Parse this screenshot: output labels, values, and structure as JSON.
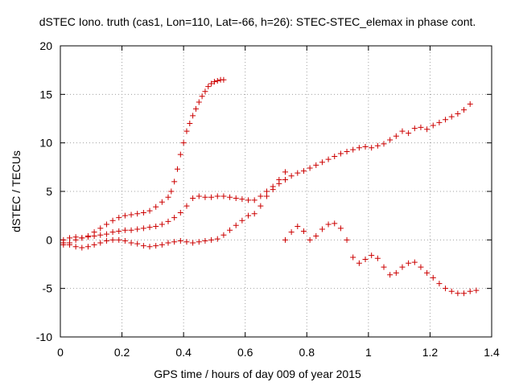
{
  "chart_data": {
    "type": "scatter",
    "title": "dSTEC Iono. truth (cas1, Lon=110, Lat=-66, h=26): STEC-STEC_elemax in phase cont.",
    "xlabel": "GPS time / hours of day 009 of year 2015",
    "ylabel": "dSTEC  / TECUs",
    "xlim": [
      0,
      1.4
    ],
    "ylim": [
      -10,
      20
    ],
    "xticks": [
      0,
      0.2,
      0.4,
      0.6,
      0.8,
      1,
      1.2,
      1.4
    ],
    "yticks": [
      -10,
      -5,
      0,
      5,
      10,
      15,
      20
    ],
    "grid": true,
    "marker": "+",
    "color": "#cc0000",
    "series": [
      {
        "x": [
          0.01,
          0.03,
          0.05,
          0.07,
          0.09,
          0.11,
          0.13,
          0.15,
          0.17,
          0.19,
          0.21,
          0.23,
          0.25,
          0.27,
          0.29,
          0.31,
          0.33,
          0.35,
          0.36,
          0.37,
          0.38,
          0.39,
          0.4,
          0.41,
          0.42,
          0.43,
          0.44,
          0.45,
          0.46,
          0.47,
          0.48,
          0.49,
          0.5,
          0.51,
          0.52,
          0.53
        ],
        "y": [
          -0.5,
          -0.3,
          0.0,
          0.2,
          0.4,
          0.8,
          1.2,
          1.6,
          2.0,
          2.3,
          2.5,
          2.6,
          2.7,
          2.8,
          3.0,
          3.4,
          3.9,
          4.4,
          5.0,
          6.0,
          7.3,
          8.8,
          10.0,
          11.2,
          12.0,
          12.8,
          13.5,
          14.2,
          14.8,
          15.3,
          15.8,
          16.1,
          16.3,
          16.4,
          16.5,
          16.5
        ]
      },
      {
        "x": [
          0.01,
          0.03,
          0.05,
          0.07,
          0.09,
          0.11,
          0.13,
          0.15,
          0.17,
          0.19,
          0.21,
          0.23,
          0.25,
          0.27,
          0.29,
          0.31,
          0.33,
          0.35,
          0.37,
          0.39,
          0.41,
          0.43,
          0.45,
          0.47,
          0.49,
          0.51,
          0.53,
          0.55,
          0.57,
          0.59,
          0.61,
          0.63,
          0.65,
          0.67,
          0.69,
          0.71,
          0.73
        ],
        "y": [
          0.0,
          0.2,
          0.3,
          0.2,
          0.3,
          0.4,
          0.5,
          0.6,
          0.8,
          0.9,
          1.0,
          1.0,
          1.1,
          1.2,
          1.3,
          1.4,
          1.6,
          1.9,
          2.3,
          2.8,
          3.5,
          4.3,
          4.5,
          4.4,
          4.4,
          4.5,
          4.5,
          4.4,
          4.3,
          4.2,
          4.1,
          4.1,
          4.5,
          5.0,
          5.5,
          6.2,
          7.0
        ]
      },
      {
        "x": [
          0.01,
          0.03,
          0.05,
          0.07,
          0.09,
          0.11,
          0.13,
          0.15,
          0.17,
          0.19,
          0.21,
          0.23,
          0.25,
          0.27,
          0.29,
          0.31,
          0.33,
          0.35,
          0.37,
          0.39,
          0.41,
          0.43,
          0.45,
          0.47,
          0.49,
          0.51,
          0.53,
          0.55,
          0.57,
          0.59,
          0.61,
          0.63,
          0.65,
          0.67,
          0.69,
          0.71,
          0.73,
          0.75,
          0.77,
          0.79,
          0.81,
          0.83,
          0.85,
          0.87,
          0.89,
          0.91,
          0.93,
          0.95,
          0.97,
          0.99,
          1.01,
          1.03,
          1.05,
          1.07,
          1.09,
          1.11,
          1.13,
          1.15,
          1.17,
          1.19,
          1.21,
          1.23,
          1.25,
          1.27,
          1.29,
          1.31,
          1.33
        ],
        "y": [
          -0.3,
          -0.5,
          -0.7,
          -0.8,
          -0.7,
          -0.5,
          -0.3,
          -0.1,
          0.0,
          0.0,
          -0.1,
          -0.3,
          -0.4,
          -0.6,
          -0.7,
          -0.6,
          -0.5,
          -0.3,
          -0.2,
          -0.1,
          -0.2,
          -0.3,
          -0.2,
          -0.1,
          0.0,
          0.1,
          0.5,
          1.0,
          1.5,
          2.0,
          2.5,
          2.7,
          3.5,
          4.5,
          5.2,
          5.8,
          6.2,
          6.6,
          6.9,
          7.1,
          7.4,
          7.7,
          8.0,
          8.3,
          8.6,
          8.9,
          9.1,
          9.3,
          9.5,
          9.6,
          9.5,
          9.7,
          9.9,
          10.3,
          10.7,
          11.2,
          11.0,
          11.5,
          11.6,
          11.4,
          11.8,
          12.1,
          12.4,
          12.7,
          13.0,
          13.4,
          14.0
        ]
      },
      {
        "x": [
          0.73,
          0.75,
          0.77,
          0.79,
          0.81,
          0.83,
          0.85,
          0.87,
          0.89,
          0.91,
          0.93,
          0.95,
          0.97,
          0.99,
          1.01,
          1.03,
          1.05,
          1.07,
          1.09,
          1.11,
          1.13,
          1.15,
          1.17,
          1.19,
          1.21,
          1.23,
          1.25,
          1.27,
          1.29,
          1.31,
          1.33,
          1.35
        ],
        "y": [
          0.0,
          0.8,
          1.4,
          0.9,
          0.0,
          0.4,
          1.1,
          1.6,
          1.7,
          1.2,
          0.0,
          -1.8,
          -2.4,
          -2.0,
          -1.6,
          -1.9,
          -2.8,
          -3.6,
          -3.4,
          -2.8,
          -2.4,
          -2.3,
          -2.8,
          -3.4,
          -3.9,
          -4.5,
          -5.0,
          -5.3,
          -5.5,
          -5.5,
          -5.3,
          -5.2
        ]
      }
    ]
  }
}
